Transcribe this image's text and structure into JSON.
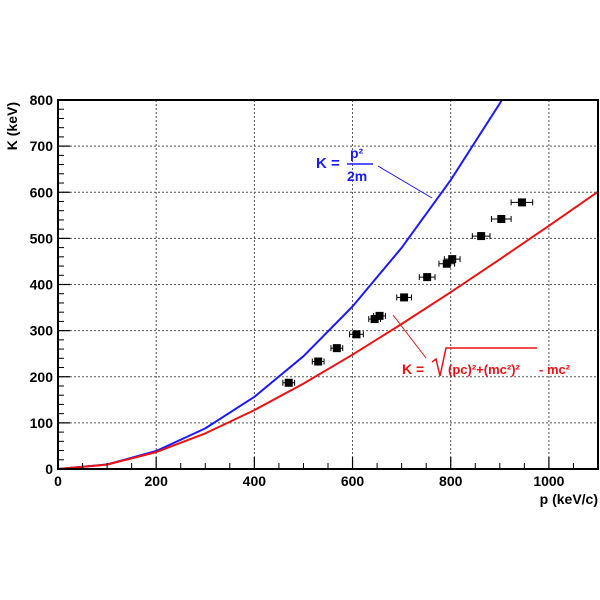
{
  "chart_data": {
    "type": "scatter",
    "xlabel": "p (keV/c)",
    "ylabel": "K (keV)",
    "xlim": [
      0,
      1100
    ],
    "ylim": [
      0,
      800
    ],
    "x_ticks": [
      "0",
      "200",
      "400",
      "600",
      "800",
      "1000"
    ],
    "y_ticks": [
      "0",
      "100",
      "200",
      "300",
      "400",
      "500",
      "600",
      "700",
      "800"
    ],
    "grid": true,
    "curves": [
      {
        "kind": "classical",
        "color": "#1a1aff",
        "label": {
          "lhs": "K =",
          "num": "p²",
          "den": "2m"
        },
        "points": [
          [
            0,
            0
          ],
          [
            100,
            9.8
          ],
          [
            200,
            39.1
          ],
          [
            300,
            88.1
          ],
          [
            400,
            156.6
          ],
          [
            500,
            244.6
          ],
          [
            600,
            352.3
          ],
          [
            700,
            479.5
          ],
          [
            800,
            626.3
          ],
          [
            900,
            792.6
          ],
          [
            904,
            800
          ]
        ]
      },
      {
        "kind": "relativistic",
        "color": "#ee1111",
        "label": {
          "pre": "K =",
          "expr": "(pc)²+(mc²)²",
          "post": "- mc²"
        },
        "points": [
          [
            0,
            0
          ],
          [
            100,
            9.6
          ],
          [
            200,
            36.6
          ],
          [
            300,
            77.1
          ],
          [
            400,
            127.6
          ],
          [
            500,
            185.1
          ],
          [
            600,
            247.9
          ],
          [
            700,
            314.3
          ],
          [
            800,
            383.4
          ],
          [
            900,
            454.6
          ],
          [
            1000,
            527.3
          ],
          [
            1100,
            601.2
          ]
        ]
      }
    ],
    "points": [
      {
        "x": 470,
        "y": 187,
        "xerr": 12
      },
      {
        "x": 530,
        "y": 233,
        "xerr": 12
      },
      {
        "x": 568,
        "y": 262,
        "xerr": 12
      },
      {
        "x": 608,
        "y": 292,
        "xerr": 14
      },
      {
        "x": 645,
        "y": 325,
        "xerr": 12
      },
      {
        "x": 655,
        "y": 332,
        "xerr": 12
      },
      {
        "x": 705,
        "y": 372,
        "xerr": 15
      },
      {
        "x": 752,
        "y": 416,
        "xerr": 16
      },
      {
        "x": 792,
        "y": 445,
        "xerr": 16
      },
      {
        "x": 803,
        "y": 455,
        "xerr": 16
      },
      {
        "x": 862,
        "y": 505,
        "xerr": 18
      },
      {
        "x": 903,
        "y": 542,
        "xerr": 20
      },
      {
        "x": 945,
        "y": 578,
        "xerr": 22
      }
    ]
  }
}
